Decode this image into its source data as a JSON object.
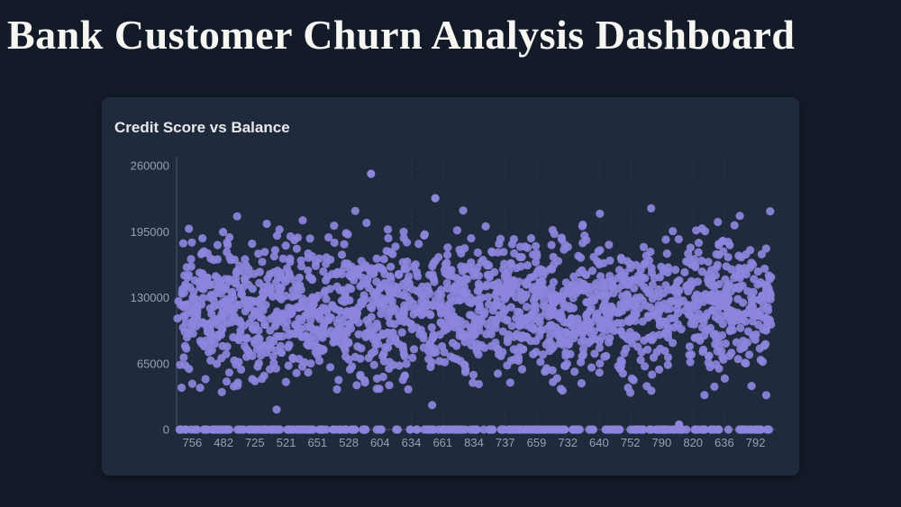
{
  "header": {
    "title": "Bank Customer Churn Analysis Dashboard"
  },
  "chart": {
    "title": "Credit Score vs Balance"
  },
  "chart_data": {
    "type": "scatter",
    "title": "Credit Score vs Balance",
    "xlabel": "",
    "ylabel": "",
    "ylim": [
      0,
      260000
    ],
    "y_ticks": [
      0,
      65000,
      130000,
      195000,
      260000
    ],
    "x_tick_labels": [
      "756",
      "482",
      "725",
      "521",
      "651",
      "528",
      "604",
      "634",
      "661",
      "834",
      "737",
      "659",
      "732",
      "640",
      "752",
      "790",
      "820",
      "636",
      "792"
    ],
    "legend": "none",
    "grid": "vertical-dashed",
    "point_color": "#8d86dc",
    "point_radius": 4.6,
    "points": {
      "count": 2200,
      "zero_balance_fraction": 0.13,
      "balance_mean": 121000,
      "balance_std": 34000,
      "balance_min": 18000,
      "balance_max": 218000,
      "outliers": [
        {
          "x_frac": 0.327,
          "y": 252000
        },
        {
          "x_frac": 0.435,
          "y": 228000
        },
        {
          "x_frac": 0.845,
          "y": 5000
        }
      ],
      "seed": 42
    },
    "colors": {
      "axis": "#4a5368",
      "grid": "#2b3448",
      "tick_label": "#98a0b0",
      "card_bg": "#202a3d",
      "page_bg": "#131b29"
    }
  }
}
